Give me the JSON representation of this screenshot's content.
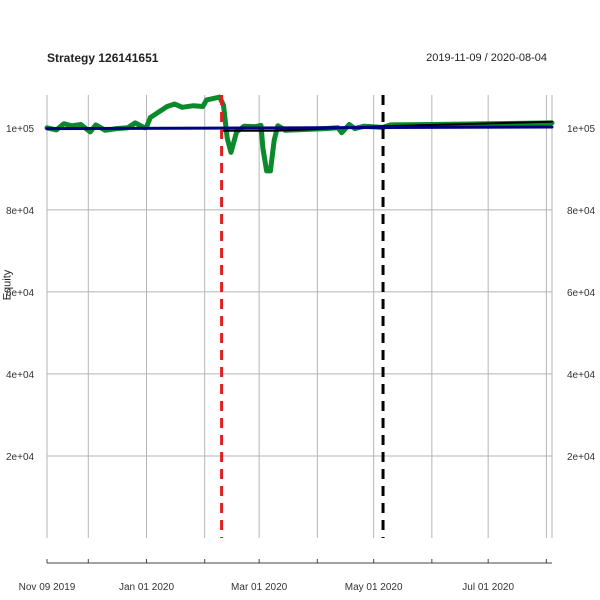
{
  "chart_data": {
    "type": "line",
    "title": "Strategy 126141651",
    "date_range": "2019-11-09 / 2020-08-04",
    "ylabel": "Equity",
    "ylim": [
      0,
      108000
    ],
    "grid": true,
    "y_ticks": [
      {
        "value": 100000,
        "label": "1e+05"
      },
      {
        "value": 80000,
        "label": "8e+04"
      },
      {
        "value": 60000,
        "label": "6e+04"
      },
      {
        "value": 40000,
        "label": "4e+04"
      },
      {
        "value": 20000,
        "label": "2e+04"
      }
    ],
    "x_ticks": [
      {
        "date": "2019-11-09",
        "label": "Nov 09 2019"
      },
      {
        "date": "2020-01-01",
        "label": "Jan 01 2020"
      },
      {
        "date": "2020-03-01",
        "label": "Mar 01 2020"
      },
      {
        "date": "2020-05-01",
        "label": "May 01 2020"
      },
      {
        "date": "2020-07-01",
        "label": "Jul 01 2020"
      }
    ],
    "x_minor_ticks": [
      "2019-12-01",
      "2020-02-01",
      "2020-04-01",
      "2020-06-01",
      "2020-08-01"
    ],
    "series": [
      {
        "color": "#0a8a2a",
        "points": [
          [
            "2019-11-09",
            100000
          ],
          [
            "2019-11-14",
            99500
          ],
          [
            "2019-11-18",
            101000
          ],
          [
            "2019-11-22",
            100500
          ],
          [
            "2019-11-27",
            100800
          ],
          [
            "2019-12-02",
            99000
          ],
          [
            "2019-12-05",
            100700
          ],
          [
            "2019-12-10",
            99400
          ],
          [
            "2019-12-16",
            99800
          ],
          [
            "2019-12-22",
            100000
          ],
          [
            "2019-12-26",
            101200
          ],
          [
            "2019-12-31",
            100000
          ],
          [
            "2020-01-01",
            100200
          ],
          [
            "2020-01-03",
            102500
          ],
          [
            "2020-01-08",
            104000
          ],
          [
            "2020-01-12",
            105200
          ],
          [
            "2020-01-16",
            105800
          ],
          [
            "2020-01-20",
            105000
          ],
          [
            "2020-01-26",
            105400
          ],
          [
            "2020-01-31",
            105200
          ],
          [
            "2020-02-02",
            106800
          ],
          [
            "2020-02-06",
            107200
          ],
          [
            "2020-02-09",
            107500
          ],
          [
            "2020-02-11",
            105500
          ],
          [
            "2020-02-13",
            97500
          ],
          [
            "2020-02-15",
            94000
          ],
          [
            "2020-02-18",
            99000
          ],
          [
            "2020-02-22",
            100400
          ],
          [
            "2020-02-28",
            100300
          ],
          [
            "2020-03-02",
            100600
          ],
          [
            "2020-03-03",
            95000
          ],
          [
            "2020-03-05",
            89500
          ],
          [
            "2020-03-07",
            89500
          ],
          [
            "2020-03-09",
            97000
          ],
          [
            "2020-03-11",
            100500
          ],
          [
            "2020-03-15",
            99400
          ],
          [
            "2020-03-25",
            99600
          ],
          [
            "2020-04-05",
            99800
          ],
          [
            "2020-04-12",
            100000
          ],
          [
            "2020-04-14",
            98800
          ],
          [
            "2020-04-18",
            100800
          ],
          [
            "2020-04-21",
            99800
          ],
          [
            "2020-04-26",
            100400
          ],
          [
            "2020-05-06",
            100100
          ],
          [
            "2020-05-10",
            100700
          ],
          [
            "2020-06-01",
            100800
          ],
          [
            "2020-07-01",
            101000
          ],
          [
            "2020-08-04",
            101200
          ]
        ]
      },
      {
        "color": "#000000",
        "points": [
          [
            "2020-02-11",
            99300
          ],
          [
            "2020-03-10",
            99300
          ],
          [
            "2020-05-06",
            100400
          ],
          [
            "2020-08-04",
            101500
          ]
        ]
      },
      {
        "color": "#000080",
        "points": [
          [
            "2019-11-09",
            99800
          ],
          [
            "2020-08-04",
            100200
          ]
        ]
      }
    ],
    "vertical_markers": [
      {
        "date": "2020-02-10",
        "color": "#e02020",
        "style": "dashed"
      },
      {
        "date": "2020-05-06",
        "color": "#000000",
        "style": "dashed"
      }
    ]
  }
}
